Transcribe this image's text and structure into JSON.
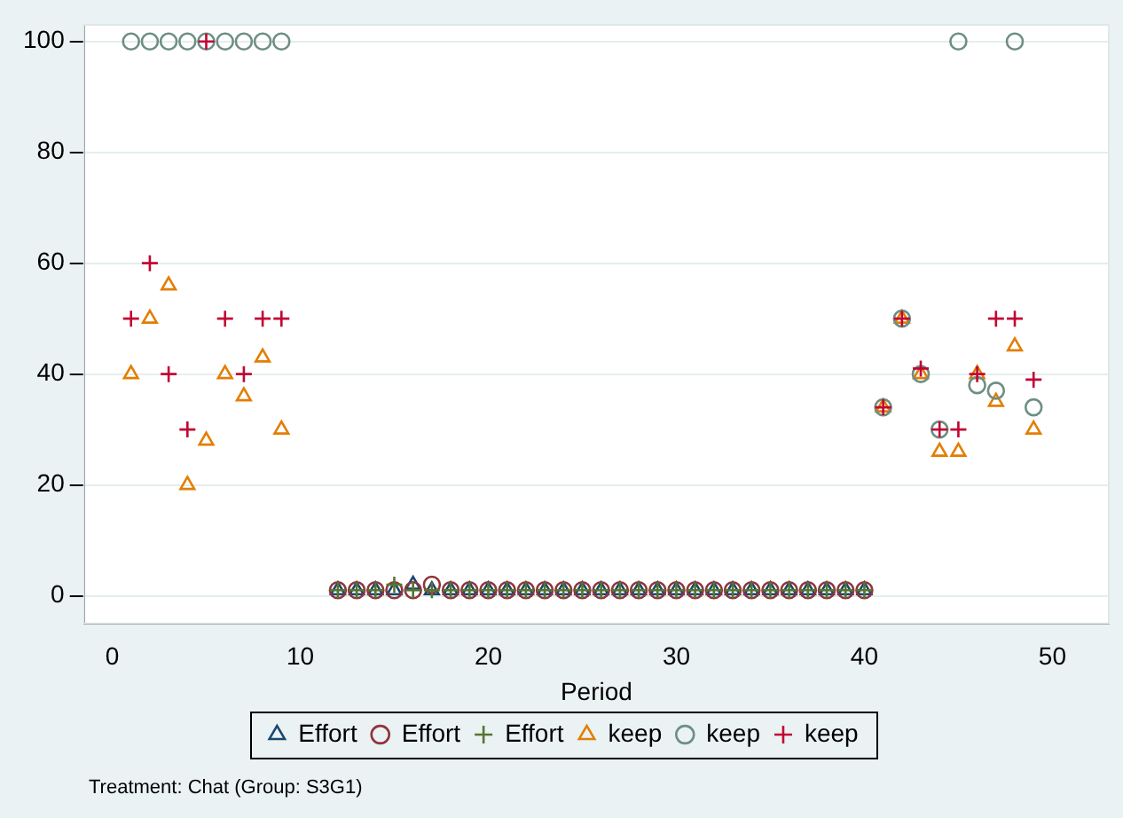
{
  "chart_data": {
    "type": "scatter",
    "xlabel": "Period",
    "xlim": [
      -1.5,
      53
    ],
    "xticks": [
      0,
      10,
      20,
      30,
      40,
      50
    ],
    "ylim": [
      -5,
      103
    ],
    "yticks": [
      0,
      20,
      40,
      60,
      80,
      100
    ],
    "grid": "y",
    "legend": "bottom",
    "annotations": [
      "Treatment: Chat (Group: S3G1)"
    ],
    "series": [
      {
        "name": "Effort",
        "color": "#1a476f",
        "marker": "triangle",
        "x": [
          12,
          13,
          14,
          15,
          16,
          17,
          18,
          19,
          20,
          21,
          22,
          23,
          24,
          25,
          26,
          27,
          28,
          29,
          30,
          31,
          32,
          33,
          34,
          35,
          36,
          37,
          38,
          39,
          40
        ],
        "values": [
          1,
          1,
          1,
          1,
          2,
          1,
          1,
          1,
          1,
          1,
          1,
          1,
          1,
          1,
          1,
          1,
          1,
          1,
          1,
          1,
          1,
          1,
          1,
          1,
          1,
          1,
          1,
          1,
          1
        ]
      },
      {
        "name": "Effort",
        "color": "#90353b",
        "marker": "circle",
        "x": [
          12,
          13,
          14,
          15,
          16,
          17,
          18,
          19,
          20,
          21,
          22,
          23,
          24,
          25,
          26,
          27,
          28,
          29,
          30,
          31,
          32,
          33,
          34,
          35,
          36,
          37,
          38,
          39,
          40
        ],
        "values": [
          1,
          1,
          1,
          1,
          1,
          2,
          1,
          1,
          1,
          1,
          1,
          1,
          1,
          1,
          1,
          1,
          1,
          1,
          1,
          1,
          1,
          1,
          1,
          1,
          1,
          1,
          1,
          1,
          1
        ]
      },
      {
        "name": "Effort",
        "color": "#55752f",
        "marker": "cross",
        "x": [
          12,
          13,
          14,
          15,
          16,
          17,
          18,
          19,
          20,
          21,
          22,
          23,
          24,
          25,
          26,
          27,
          28,
          29,
          30,
          31,
          32,
          33,
          34,
          35,
          36,
          37,
          38,
          39,
          40
        ],
        "values": [
          1,
          1,
          1,
          2,
          1,
          1,
          1,
          1,
          1,
          1,
          1,
          1,
          1,
          1,
          1,
          1,
          1,
          1,
          1,
          1,
          1,
          1,
          1,
          1,
          1,
          1,
          1,
          1,
          1
        ]
      },
      {
        "name": "keep",
        "color": "#e37e00",
        "marker": "triangle",
        "x": [
          1,
          2,
          3,
          4,
          5,
          6,
          7,
          8,
          9,
          41,
          42,
          43,
          44,
          45,
          46,
          47,
          48,
          49
        ],
        "values": [
          40,
          50,
          56,
          20,
          28,
          40,
          36,
          43,
          30,
          34,
          50,
          40,
          26,
          26,
          40,
          35,
          45,
          30
        ]
      },
      {
        "name": "keep",
        "color": "#6e8e84",
        "marker": "circle",
        "x": [
          1,
          2,
          3,
          4,
          5,
          6,
          7,
          8,
          9,
          41,
          42,
          43,
          44,
          45,
          46,
          47,
          48,
          49
        ],
        "values": [
          100,
          100,
          100,
          100,
          100,
          100,
          100,
          100,
          100,
          34,
          50,
          40,
          30,
          100,
          38,
          37,
          100,
          34
        ]
      },
      {
        "name": "keep",
        "color": "#c10534",
        "marker": "cross",
        "x": [
          1,
          2,
          3,
          4,
          5,
          6,
          7,
          8,
          9,
          41,
          42,
          43,
          44,
          45,
          46,
          47,
          48,
          49
        ],
        "values": [
          50,
          60,
          40,
          30,
          100,
          50,
          40,
          50,
          50,
          34,
          50,
          41,
          30,
          30,
          40,
          50,
          50,
          39
        ]
      }
    ]
  }
}
